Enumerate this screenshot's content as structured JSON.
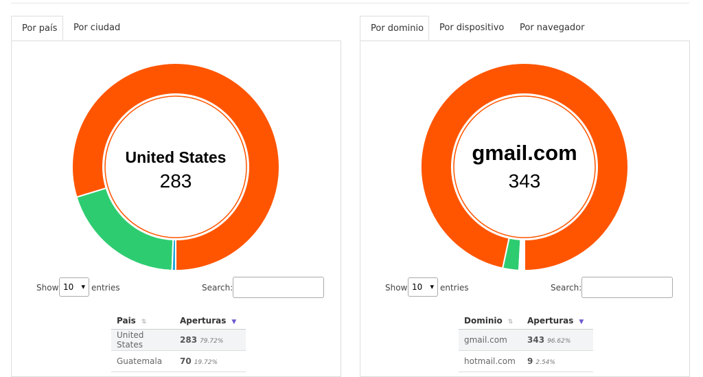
{
  "panels": [
    {
      "tabs": [
        "Por país",
        "Por ciudad"
      ],
      "active_tab": 0,
      "donut": {
        "center_label": "United States",
        "center_value": 283,
        "slices": [
          {
            "value": 283,
            "color": "#ff5500"
          },
          {
            "value": 70,
            "color": "#2ecc71"
          },
          {
            "value": 2,
            "color": "#1fa8d8"
          }
        ]
      },
      "controls": {
        "show": "Show",
        "length": "10",
        "entries": "entries",
        "search": "Search:"
      },
      "table": {
        "headers": [
          "Pais",
          "Aperturas"
        ],
        "rows": [
          [
            "United States",
            "283",
            "79.72%"
          ],
          [
            "Guatemala",
            "70",
            "19.72%"
          ]
        ]
      }
    },
    {
      "tabs": [
        "Por dominio",
        "Por dispositivo",
        "Por navegador"
      ],
      "active_tab": 0,
      "donut": {
        "center_label": "gmail.com",
        "center_value": 343,
        "slices": [
          {
            "value": 343,
            "color": "#ff5500"
          },
          {
            "value": 9,
            "color": "#2ecc71"
          },
          {
            "value": 0.75,
            "color": "#1fa8d8"
          },
          {
            "value": 0.75,
            "color": "#3a2fc4"
          },
          {
            "value": 0.75,
            "color": "#8e24aa"
          },
          {
            "value": 0.75,
            "color": "#e0158a"
          }
        ]
      },
      "controls": {
        "show": "Show",
        "length": "10",
        "entries": "entries",
        "search": "Search:"
      },
      "table": {
        "headers": [
          "Dominio",
          "Aperturas"
        ],
        "rows": [
          [
            "gmail.com",
            "343",
            "96.62%"
          ],
          [
            "hotmail.com",
            "9",
            "2.54%"
          ]
        ]
      }
    }
  ]
}
